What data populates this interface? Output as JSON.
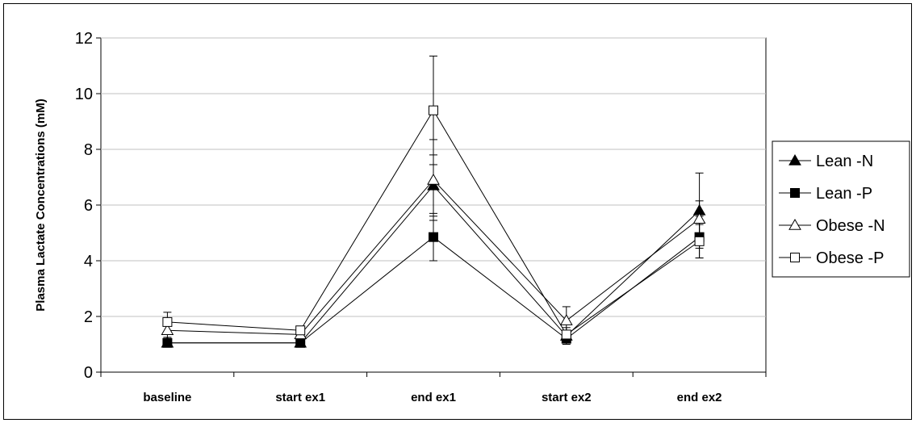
{
  "chart_data": {
    "type": "line",
    "title": "",
    "xlabel": "",
    "ylabel": "Plasma Lactate Concentrations (mM)",
    "ylim": [
      0,
      12
    ],
    "yticks": [
      0,
      2,
      4,
      6,
      8,
      10,
      12
    ],
    "grid": "horizontal",
    "legend_position": "right",
    "categories": [
      "baseline",
      "start ex1",
      "end ex1",
      "start ex2",
      "end ex2"
    ],
    "series": [
      {
        "name": "Lean -N",
        "marker": "filled-triangle",
        "color": "#000000",
        "values": [
          1.05,
          1.05,
          6.7,
          1.3,
          5.8
        ],
        "errors": [
          0.1,
          0.1,
          1.1,
          0.2,
          1.35
        ]
      },
      {
        "name": "Lean -P",
        "marker": "filled-square",
        "color": "#000000",
        "values": [
          1.05,
          1.05,
          4.85,
          1.2,
          4.85
        ],
        "errors": [
          0.1,
          0.1,
          0.85,
          0.2,
          0.75
        ]
      },
      {
        "name": "Obese -N",
        "marker": "open-triangle",
        "color": "#000000",
        "values": [
          1.5,
          1.35,
          6.9,
          1.85,
          5.5
        ],
        "errors": [
          0.25,
          0.1,
          1.45,
          0.5,
          0.65
        ]
      },
      {
        "name": "Obese -P",
        "marker": "open-square",
        "color": "#000000",
        "values": [
          1.8,
          1.5,
          9.4,
          1.35,
          4.7
        ],
        "errors": [
          0.35,
          0.15,
          1.95,
          0.25,
          0.6
        ]
      }
    ]
  }
}
